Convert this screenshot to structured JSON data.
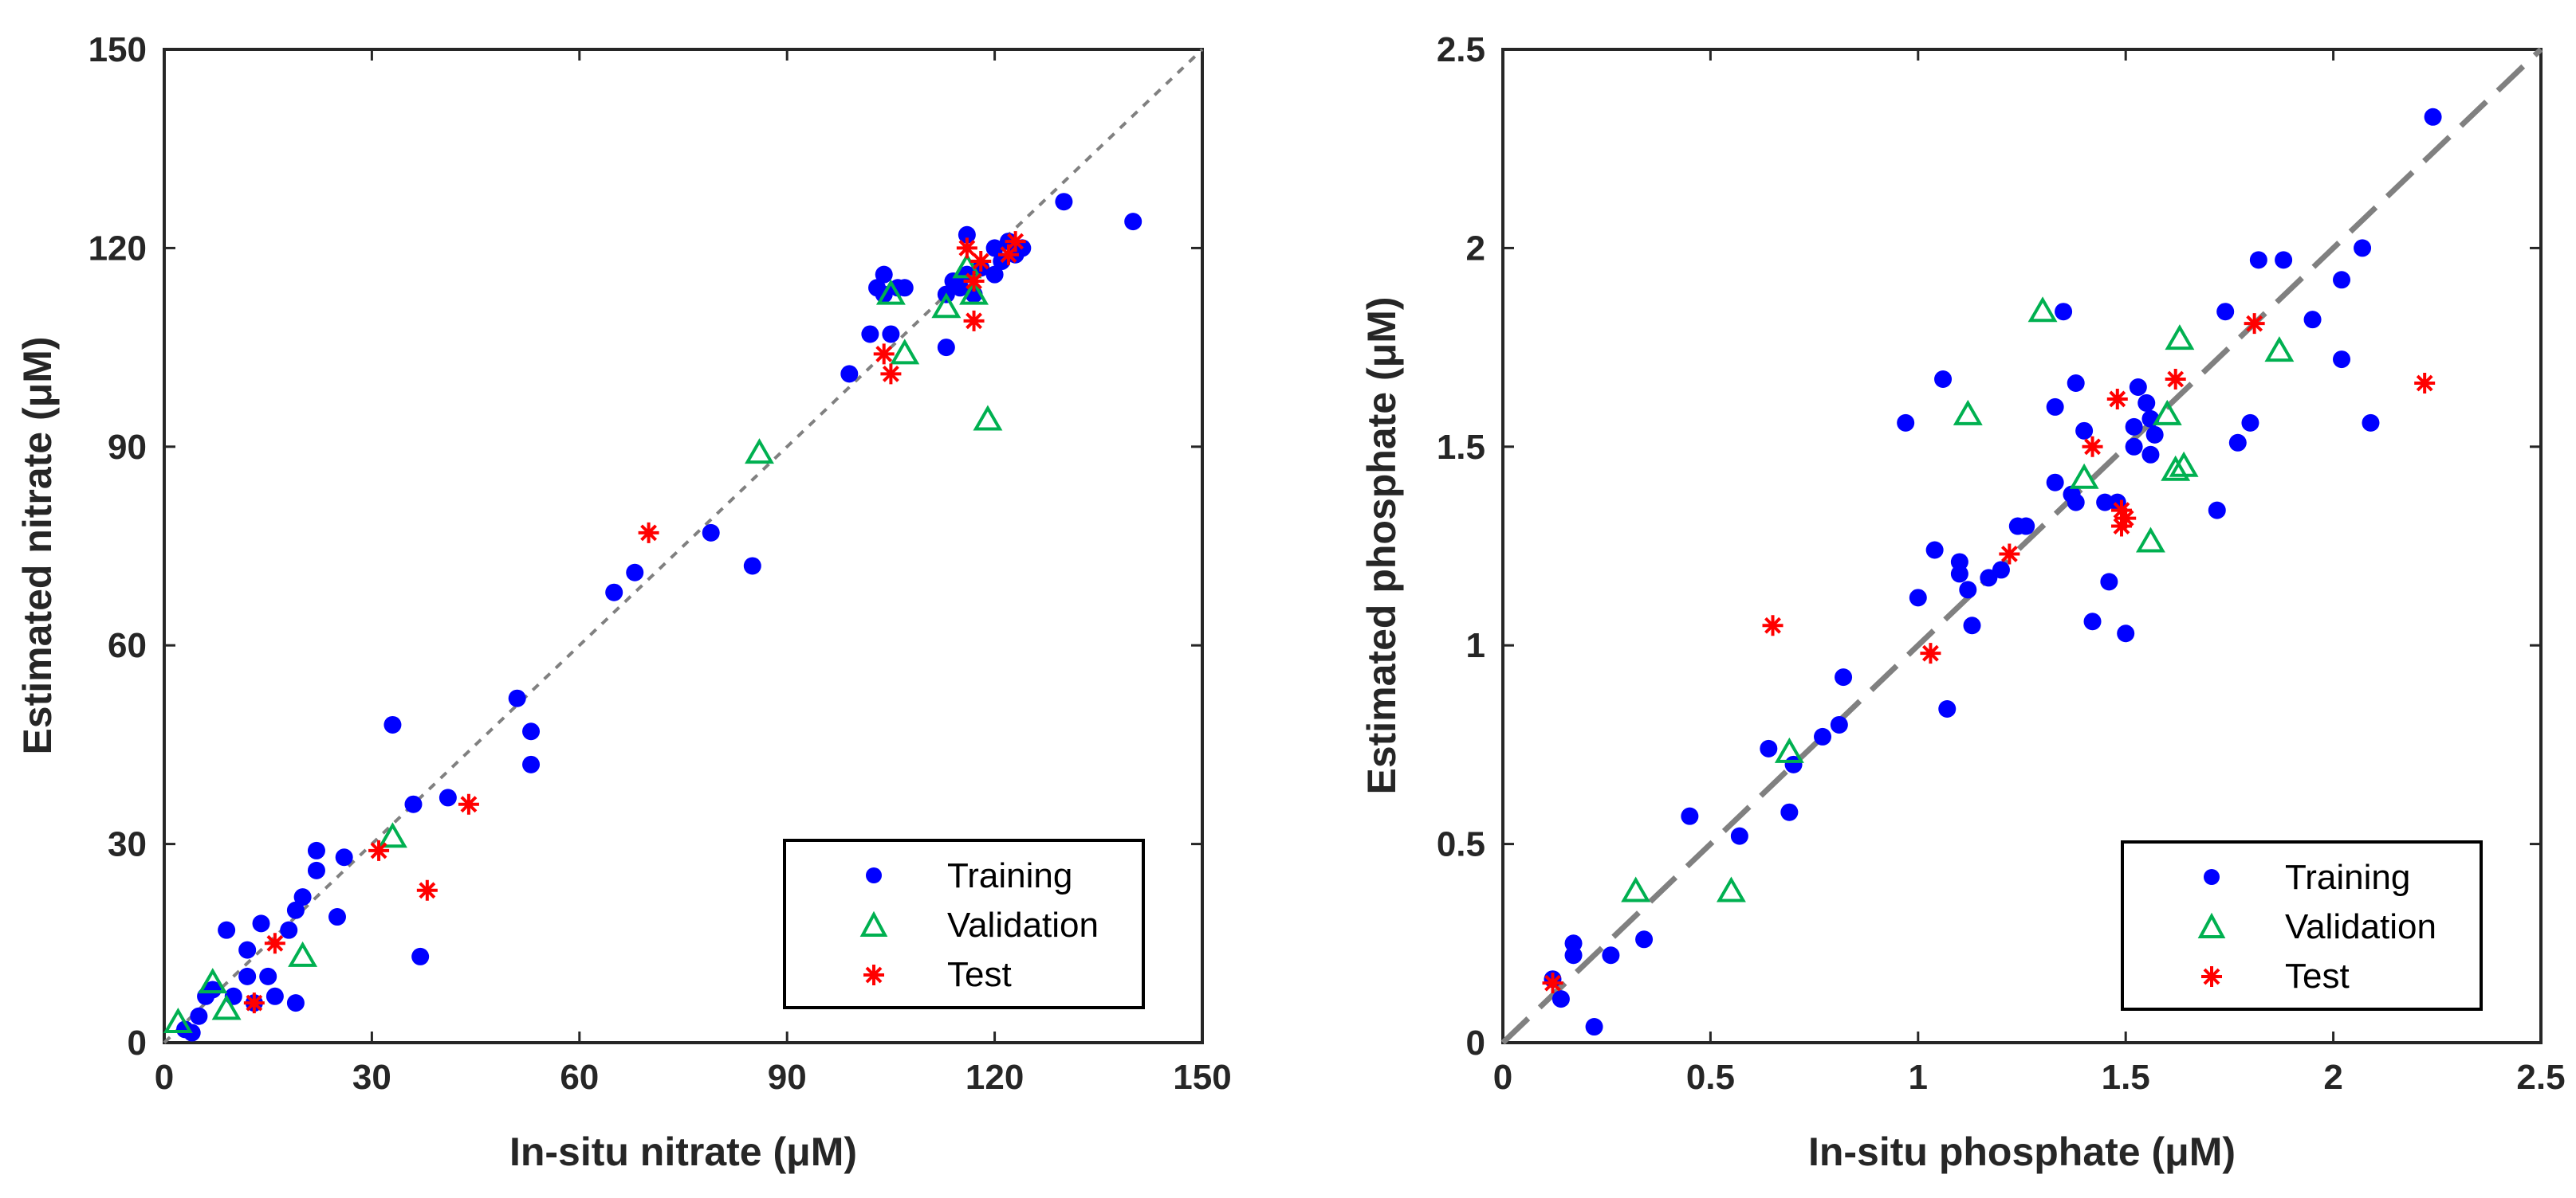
{
  "chart_data": [
    {
      "type": "scatter",
      "xlabel": "In-situ nitrate (μM)",
      "ylabel": "Estimated nitrate (μM)",
      "xlim": [
        0,
        150
      ],
      "ylim": [
        0,
        150
      ],
      "xticks": [
        "0",
        "30",
        "60",
        "90",
        "120",
        "150"
      ],
      "yticks": [
        "0",
        "30",
        "60",
        "90",
        "120",
        "150"
      ],
      "reference_line": {
        "style": "dotted",
        "from": [
          0,
          0
        ],
        "to": [
          150,
          150
        ]
      },
      "legend": {
        "position": "bottom-right",
        "entries": [
          "Training",
          "Validation",
          "Test"
        ]
      },
      "series": [
        {
          "name": "Training",
          "marker": "circle",
          "color": "#0000ff",
          "points": [
            [
              3,
              2
            ],
            [
              4,
              1.5
            ],
            [
              5,
              4
            ],
            [
              6,
              7
            ],
            [
              7,
              8
            ],
            [
              9,
              17
            ],
            [
              10,
              7
            ],
            [
              12,
              14
            ],
            [
              12,
              10
            ],
            [
              13,
              6
            ],
            [
              14,
              18
            ],
            [
              15,
              10
            ],
            [
              16,
              7
            ],
            [
              18,
              17
            ],
            [
              19,
              20
            ],
            [
              19,
              6
            ],
            [
              20,
              22
            ],
            [
              22,
              26
            ],
            [
              22,
              29
            ],
            [
              25,
              19
            ],
            [
              26,
              28
            ],
            [
              33,
              48
            ],
            [
              36,
              36
            ],
            [
              37,
              13
            ],
            [
              41,
              37
            ],
            [
              51,
              52
            ],
            [
              53,
              47
            ],
            [
              53,
              42
            ],
            [
              65,
              68
            ],
            [
              68,
              71
            ],
            [
              79,
              77
            ],
            [
              85,
              72
            ],
            [
              99,
              101
            ],
            [
              102,
              107
            ],
            [
              103,
              114
            ],
            [
              104,
              116
            ],
            [
              104,
              113
            ],
            [
              105,
              107
            ],
            [
              106,
              114
            ],
            [
              107,
              114
            ],
            [
              113,
              105
            ],
            [
              113,
              113
            ],
            [
              114,
              115
            ],
            [
              115,
              114
            ],
            [
              116,
              116
            ],
            [
              116,
              122
            ],
            [
              117,
              113
            ],
            [
              118,
              117
            ],
            [
              120,
              120
            ],
            [
              120,
              116
            ],
            [
              121,
              118
            ],
            [
              122,
              121
            ],
            [
              123,
              119
            ],
            [
              124,
              120
            ],
            [
              130,
              127
            ],
            [
              140,
              124
            ]
          ]
        },
        {
          "name": "Validation",
          "marker": "triangle",
          "color": "#00b050",
          "points": [
            [
              2,
              3
            ],
            [
              7,
              9
            ],
            [
              9,
              5
            ],
            [
              20,
              13
            ],
            [
              33,
              31
            ],
            [
              86,
              89
            ],
            [
              105,
              113
            ],
            [
              107,
              104
            ],
            [
              113,
              111
            ],
            [
              116,
              117
            ],
            [
              117,
              113
            ],
            [
              119,
              94
            ]
          ]
        },
        {
          "name": "Test",
          "marker": "asterisk",
          "color": "#ff0000",
          "points": [
            [
              13,
              6
            ],
            [
              16,
              15
            ],
            [
              31,
              29
            ],
            [
              38,
              23
            ],
            [
              44,
              36
            ],
            [
              70,
              77
            ],
            [
              104,
              104
            ],
            [
              105,
              101
            ],
            [
              116,
              120
            ],
            [
              117,
              115
            ],
            [
              117,
              109
            ],
            [
              118,
              118
            ],
            [
              122,
              119
            ],
            [
              123,
              121
            ]
          ]
        }
      ]
    },
    {
      "type": "scatter",
      "xlabel": "In-situ phosphate (μM)",
      "ylabel": "Estimated phosphate (μM)",
      "xlim": [
        0,
        2.5
      ],
      "ylim": [
        0,
        2.5
      ],
      "xticks": [
        "0",
        "0.5",
        "1",
        "1.5",
        "2",
        "2.5"
      ],
      "yticks": [
        "0",
        "0.5",
        "1",
        "1.5",
        "2",
        "2.5"
      ],
      "reference_line": {
        "style": "dashed",
        "from": [
          0,
          0
        ],
        "to": [
          2.5,
          2.5
        ]
      },
      "legend": {
        "position": "bottom-right",
        "entries": [
          "Training",
          "Validation",
          "Test"
        ]
      },
      "series": [
        {
          "name": "Training",
          "marker": "circle",
          "color": "#0000ff",
          "points": [
            [
              0.12,
              0.16
            ],
            [
              0.14,
              0.11
            ],
            [
              0.17,
              0.25
            ],
            [
              0.17,
              0.22
            ],
            [
              0.22,
              0.04
            ],
            [
              0.26,
              0.22
            ],
            [
              0.34,
              0.26
            ],
            [
              0.45,
              0.57
            ],
            [
              0.57,
              0.52
            ],
            [
              0.64,
              0.74
            ],
            [
              0.69,
              0.58
            ],
            [
              0.7,
              0.7
            ],
            [
              0.77,
              0.77
            ],
            [
              0.81,
              0.8
            ],
            [
              0.82,
              0.92
            ],
            [
              0.97,
              1.56
            ],
            [
              1.0,
              1.12
            ],
            [
              1.04,
              1.24
            ],
            [
              1.06,
              1.67
            ],
            [
              1.07,
              0.84
            ],
            [
              1.1,
              1.21
            ],
            [
              1.1,
              1.18
            ],
            [
              1.12,
              1.14
            ],
            [
              1.13,
              1.05
            ],
            [
              1.17,
              1.17
            ],
            [
              1.2,
              1.19
            ],
            [
              1.24,
              1.3
            ],
            [
              1.26,
              1.3
            ],
            [
              1.33,
              1.41
            ],
            [
              1.33,
              1.6
            ],
            [
              1.35,
              1.84
            ],
            [
              1.37,
              1.38
            ],
            [
              1.38,
              1.36
            ],
            [
              1.38,
              1.66
            ],
            [
              1.4,
              1.54
            ],
            [
              1.42,
              1.06
            ],
            [
              1.45,
              1.36
            ],
            [
              1.46,
              1.16
            ],
            [
              1.48,
              1.36
            ],
            [
              1.5,
              1.03
            ],
            [
              1.52,
              1.5
            ],
            [
              1.52,
              1.55
            ],
            [
              1.53,
              1.65
            ],
            [
              1.55,
              1.61
            ],
            [
              1.56,
              1.48
            ],
            [
              1.56,
              1.57
            ],
            [
              1.57,
              1.53
            ],
            [
              1.72,
              1.34
            ],
            [
              1.74,
              1.84
            ],
            [
              1.77,
              1.51
            ],
            [
              1.8,
              1.56
            ],
            [
              1.82,
              1.97
            ],
            [
              1.88,
              1.97
            ],
            [
              1.95,
              1.82
            ],
            [
              2.02,
              1.92
            ],
            [
              2.02,
              1.72
            ],
            [
              2.07,
              2.0
            ],
            [
              2.09,
              1.56
            ],
            [
              2.24,
              2.33
            ]
          ]
        },
        {
          "name": "Validation",
          "marker": "triangle",
          "color": "#00b050",
          "points": [
            [
              0.32,
              0.38
            ],
            [
              0.55,
              0.38
            ],
            [
              0.69,
              0.73
            ],
            [
              1.12,
              1.58
            ],
            [
              1.3,
              1.84
            ],
            [
              1.4,
              1.42
            ],
            [
              1.56,
              1.26
            ],
            [
              1.6,
              1.58
            ],
            [
              1.62,
              1.44
            ],
            [
              1.63,
              1.77
            ],
            [
              1.64,
              1.45
            ],
            [
              1.87,
              1.74
            ]
          ]
        },
        {
          "name": "Test",
          "marker": "asterisk",
          "color": "#ff0000",
          "points": [
            [
              0.12,
              0.15
            ],
            [
              0.65,
              1.05
            ],
            [
              1.03,
              0.98
            ],
            [
              1.22,
              1.23
            ],
            [
              1.42,
              1.5
            ],
            [
              1.48,
              1.62
            ],
            [
              1.49,
              1.34
            ],
            [
              1.49,
              1.3
            ],
            [
              1.5,
              1.32
            ],
            [
              1.62,
              1.67
            ],
            [
              1.81,
              1.81
            ],
            [
              2.22,
              1.66
            ]
          ]
        }
      ]
    }
  ]
}
